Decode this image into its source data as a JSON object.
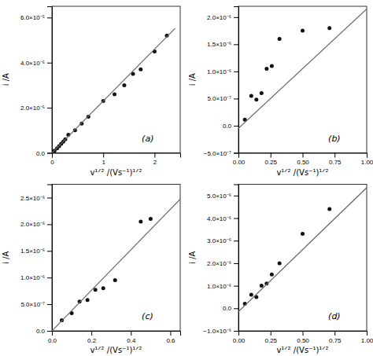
{
  "chart_data": [
    {
      "type": "scatter",
      "xlabel": "v¹ᐟ² /(Vs⁻¹)¹ᐟ²",
      "ylabel": "i /A",
      "annotations": [
        "(a)"
      ],
      "xlim": [
        0,
        2.5
      ],
      "ylim": [
        0,
        6.5e-05
      ],
      "xticks": [
        0,
        1,
        2
      ],
      "yticks": [
        {
          "value": 0.0,
          "label": "0.0"
        },
        {
          "value": 2e-05,
          "label": "2.0×10⁻⁵"
        },
        {
          "value": 4e-05,
          "label": "4.0×10⁻⁵"
        },
        {
          "value": 6e-05,
          "label": "6.0×10⁻⁵"
        }
      ],
      "series": [
        {
          "type": "scatter",
          "color": "#111111",
          "x": [
            0.05,
            0.1,
            0.14,
            0.18,
            0.22,
            0.26,
            0.32,
            0.45,
            0.58,
            0.71,
            1.0,
            1.22,
            1.41,
            1.58,
            1.73,
            2.0,
            2.24
          ],
          "values": [
            1e-06,
            2e-06,
            3e-06,
            4e-06,
            5e-06,
            6e-06,
            8e-06,
            1e-05,
            1.3e-05,
            1.6e-05,
            2.3e-05,
            2.6e-05,
            3e-05,
            3.5e-05,
            3.7e-05,
            4.5e-05,
            5.2e-05
          ]
        },
        {
          "type": "line",
          "color": "#666666",
          "x": [
            0,
            2.4
          ],
          "values": [
            0,
            5.52e-05
          ]
        }
      ]
    },
    {
      "type": "scatter",
      "xlabel": "v¹ᐟ² /(Vs⁻¹)¹ᐟ²",
      "ylabel": "i /A",
      "annotations": [
        "(b)"
      ],
      "xlim": [
        0,
        1.0
      ],
      "ylim": [
        -5e-07,
        2.2e-06
      ],
      "xticks": [
        {
          "value": 0.0,
          "label": "0.00"
        },
        {
          "value": 0.25,
          "label": "0.25"
        },
        {
          "value": 0.5,
          "label": "0.50"
        },
        {
          "value": 0.75,
          "label": "0.75"
        },
        {
          "value": 1.0,
          "label": "1.00"
        }
      ],
      "yticks": [
        {
          "value": -5e-07,
          "label": "−5.0×10⁻⁷"
        },
        {
          "value": 0.0,
          "label": "0.0"
        },
        {
          "value": 5e-07,
          "label": "5.0×10⁻⁷"
        },
        {
          "value": 1e-06,
          "label": "1.0×10⁻⁶"
        },
        {
          "value": 1.5e-06,
          "label": "1.5×10⁻⁶"
        },
        {
          "value": 2e-06,
          "label": "2.0×10⁻⁶"
        }
      ],
      "series": [
        {
          "type": "scatter",
          "color": "#111111",
          "x": [
            0.05,
            0.1,
            0.14,
            0.18,
            0.22,
            0.26,
            0.32,
            0.5,
            0.71
          ],
          "values": [
            1.1e-07,
            5.5e-07,
            4.8e-07,
            6e-07,
            1.05e-06,
            1.1e-06,
            1.6e-06,
            1.75e-06,
            1.8e-06
          ]
        },
        {
          "type": "line",
          "color": "#666666",
          "x": [
            0,
            1.0
          ],
          "values": [
            -5e-08,
            2.15e-06
          ]
        }
      ]
    },
    {
      "type": "scatter",
      "xlabel": "v¹ᐟ² /(Vs⁻¹)¹ᐟ²",
      "ylabel": "i /A",
      "annotations": [
        "(c)"
      ],
      "xlim": [
        0,
        0.65
      ],
      "ylim": [
        0,
        2.75e-06
      ],
      "xticks": [
        {
          "value": 0.0,
          "label": "0.0"
        },
        0.2,
        0.4,
        0.6
      ],
      "yticks": [
        {
          "value": 0.0,
          "label": "0.0"
        },
        {
          "value": 5e-07,
          "label": "5.0×10⁻⁷"
        },
        {
          "value": 1e-06,
          "label": "1.0×10⁻⁶"
        },
        {
          "value": 1.5e-06,
          "label": "1.5×10⁻⁶"
        },
        {
          "value": 2e-06,
          "label": "2.0×10⁻⁶"
        },
        {
          "value": 2.5e-06,
          "label": "2.5×10⁻⁶"
        }
      ],
      "series": [
        {
          "type": "scatter",
          "color": "#111111",
          "x": [
            0.05,
            0.1,
            0.14,
            0.18,
            0.22,
            0.26,
            0.32,
            0.45,
            0.5
          ],
          "values": [
            2e-07,
            3.3e-07,
            5.5e-07,
            5.8e-07,
            7.7e-07,
            8e-07,
            9.5e-07,
            2.05e-06,
            2.1e-06
          ]
        },
        {
          "type": "line",
          "color": "#666666",
          "x": [
            0,
            0.65
          ],
          "values": [
            0,
            2.47e-06
          ]
        }
      ]
    },
    {
      "type": "scatter",
      "xlabel": "v¹ᐟ² /(Vs⁻¹)¹ᐟ²",
      "ylabel": "i /A",
      "annotations": [
        "(d)"
      ],
      "xlim": [
        0,
        1.0
      ],
      "ylim": [
        -1e-06,
        5.5e-06
      ],
      "xticks": [
        {
          "value": 0.0,
          "label": "0.00"
        },
        {
          "value": 0.25,
          "label": "0.25"
        },
        {
          "value": 0.5,
          "label": "0.50"
        },
        {
          "value": 0.75,
          "label": "0.75"
        },
        {
          "value": 1.0,
          "label": "1.00"
        }
      ],
      "yticks": [
        {
          "value": -1e-06,
          "label": "−1.0×10⁻⁶"
        },
        {
          "value": 0.0,
          "label": "0.0"
        },
        {
          "value": 1e-06,
          "label": "1.0×10⁻⁶"
        },
        {
          "value": 2e-06,
          "label": "2.0×10⁻⁶"
        },
        {
          "value": 3e-06,
          "label": "3.0×10⁻⁶"
        },
        {
          "value": 4e-06,
          "label": "4.0×10⁻⁶"
        },
        {
          "value": 5e-06,
          "label": "5.0×10⁻⁶"
        }
      ],
      "series": [
        {
          "type": "scatter",
          "color": "#111111",
          "x": [
            0.05,
            0.1,
            0.14,
            0.18,
            0.22,
            0.26,
            0.32,
            0.5,
            0.71
          ],
          "values": [
            2e-07,
            6e-07,
            5e-07,
            1e-06,
            1.1e-06,
            1.5e-06,
            2e-06,
            3.3e-06,
            4.4e-06
          ]
        },
        {
          "type": "line",
          "color": "#666666",
          "x": [
            0,
            1.0
          ],
          "values": [
            -1.5e-07,
            5.35e-06
          ]
        }
      ]
    }
  ]
}
